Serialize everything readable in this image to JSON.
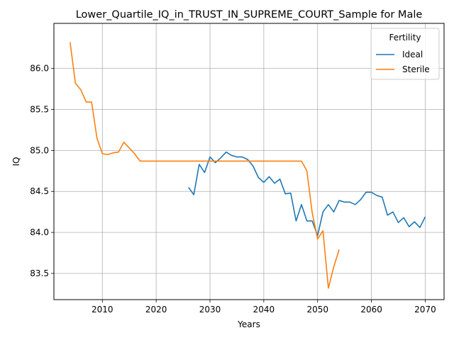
{
  "chart_data": {
    "type": "line",
    "title": "Lower_Quartile_IQ_in_TRUST_IN_SUPREME_COURT_Sample for Male",
    "xlabel": "Years",
    "ylabel": "IQ",
    "xlim": [
      2001,
      2073.5
    ],
    "ylim": [
      83.18,
      86.55
    ],
    "x_ticks": [
      2010,
      2020,
      2030,
      2040,
      2050,
      2060,
      2070
    ],
    "y_ticks": [
      83.5,
      84.0,
      84.5,
      85.0,
      85.5,
      86.0
    ],
    "y_tick_labels": [
      "83.5",
      "84.0",
      "84.5",
      "85.0",
      "85.5",
      "86.0"
    ],
    "grid": true,
    "legend": {
      "title": "Fertility",
      "position": "top-right"
    },
    "series": [
      {
        "name": "Ideal",
        "color": "#1f77b4",
        "x": [
          2026,
          2027,
          2028,
          2029,
          2030,
          2031,
          2032,
          2033,
          2034,
          2035,
          2036,
          2037,
          2038,
          2039,
          2040,
          2041,
          2042,
          2043,
          2044,
          2045,
          2046,
          2047,
          2048,
          2049,
          2050,
          2051,
          2052,
          2053,
          2054,
          2055,
          2056,
          2057,
          2058,
          2059,
          2060,
          2061,
          2062,
          2063,
          2064,
          2065,
          2066,
          2067,
          2068,
          2069,
          2070
        ],
        "values": [
          84.55,
          84.46,
          84.83,
          84.73,
          84.92,
          84.85,
          84.91,
          84.98,
          84.94,
          84.92,
          84.92,
          84.89,
          84.81,
          84.67,
          84.61,
          84.68,
          84.6,
          84.65,
          84.47,
          84.48,
          84.14,
          84.34,
          84.14,
          84.14,
          83.96,
          84.25,
          84.34,
          84.25,
          84.39,
          84.37,
          84.37,
          84.34,
          84.4,
          84.49,
          84.49,
          84.45,
          84.43,
          84.21,
          84.25,
          84.12,
          84.18,
          84.07,
          84.13,
          84.06,
          84.19
        ]
      },
      {
        "name": "Sterile",
        "color": "#ff7f0e",
        "x": [
          2004,
          2005,
          2006,
          2007,
          2008,
          2009,
          2010,
          2011,
          2012,
          2013,
          2014,
          2015,
          2016,
          2017,
          2018,
          2019,
          2020,
          2021,
          2022,
          2023,
          2024,
          2025,
          2026,
          2027,
          2028,
          2029,
          2030,
          2031,
          2032,
          2033,
          2034,
          2035,
          2036,
          2037,
          2038,
          2039,
          2040,
          2041,
          2042,
          2043,
          2044,
          2045,
          2046,
          2047,
          2048,
          2049,
          2050,
          2051,
          2052,
          2053,
          2054
        ],
        "values": [
          86.32,
          85.82,
          85.74,
          85.59,
          85.59,
          85.15,
          84.96,
          84.95,
          84.97,
          84.98,
          85.1,
          85.03,
          84.96,
          84.87,
          84.87,
          84.87,
          84.87,
          84.87,
          84.87,
          84.87,
          84.87,
          84.87,
          84.87,
          84.87,
          84.87,
          84.87,
          84.87,
          84.87,
          84.87,
          84.87,
          84.87,
          84.87,
          84.87,
          84.87,
          84.87,
          84.87,
          84.87,
          84.87,
          84.87,
          84.87,
          84.87,
          84.87,
          84.87,
          84.87,
          84.75,
          84.24,
          83.92,
          84.02,
          83.32,
          83.58,
          83.79
        ]
      }
    ]
  }
}
